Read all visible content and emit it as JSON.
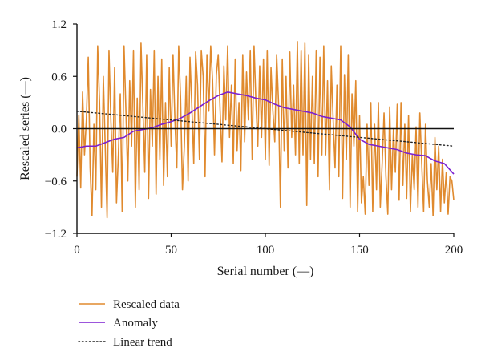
{
  "colors": {
    "rescaled_data": "#E08A2E",
    "anomaly": "#7B1FD0",
    "linear_trend": "#222222",
    "axis": "#111111"
  },
  "chart_data": {
    "type": "line",
    "xlabel": "Serial number (—)",
    "ylabel": "Rescaled series (—)",
    "xlim": [
      0,
      200
    ],
    "ylim": [
      -1.2,
      1.2
    ],
    "x_ticks": [
      0,
      50,
      100,
      150,
      200
    ],
    "y_ticks": [
      1.2,
      0.6,
      0.0,
      -0.6,
      -1.2
    ],
    "x_tick_labels": [
      "0",
      "50",
      "100",
      "150",
      "200"
    ],
    "y_tick_labels": [
      "1.2",
      "0.6",
      "0.0",
      "−0.6",
      "−1.2"
    ],
    "grid": false,
    "zero_line": true,
    "legend_position": "bottom-left, below plot",
    "series": [
      {
        "name": "Rescaled data",
        "style": "solid",
        "x": [
          0,
          1,
          2,
          3,
          4,
          5,
          6,
          7,
          8,
          9,
          10,
          11,
          12,
          13,
          14,
          15,
          16,
          17,
          18,
          19,
          20,
          21,
          22,
          23,
          24,
          25,
          26,
          27,
          28,
          29,
          30,
          31,
          32,
          33,
          34,
          35,
          36,
          37,
          38,
          39,
          40,
          41,
          42,
          43,
          44,
          45,
          46,
          47,
          48,
          49,
          50,
          51,
          52,
          53,
          54,
          55,
          56,
          57,
          58,
          59,
          60,
          61,
          62,
          63,
          64,
          65,
          66,
          67,
          68,
          69,
          70,
          71,
          72,
          73,
          74,
          75,
          76,
          77,
          78,
          79,
          80,
          81,
          82,
          83,
          84,
          85,
          86,
          87,
          88,
          89,
          90,
          91,
          92,
          93,
          94,
          95,
          96,
          97,
          98,
          99,
          100,
          101,
          102,
          103,
          104,
          105,
          106,
          107,
          108,
          109,
          110,
          111,
          112,
          113,
          114,
          115,
          116,
          117,
          118,
          119,
          120,
          121,
          122,
          123,
          124,
          125,
          126,
          127,
          128,
          129,
          130,
          131,
          132,
          133,
          134,
          135,
          136,
          137,
          138,
          139,
          140,
          141,
          142,
          143,
          144,
          145,
          146,
          147,
          148,
          149,
          150,
          151,
          152,
          153,
          154,
          155,
          156,
          157,
          158,
          159,
          160,
          161,
          162,
          163,
          164,
          165,
          166,
          167,
          168,
          169,
          170,
          171,
          172,
          173,
          174,
          175,
          176,
          177,
          178,
          179,
          180,
          181,
          182,
          183,
          184,
          185,
          186,
          187,
          188,
          189,
          190,
          191,
          192,
          193,
          194,
          195,
          196,
          197,
          198,
          199,
          200
        ],
        "y": [
          -0.55,
          0.15,
          -0.68,
          0.42,
          -0.3,
          0.1,
          0.82,
          -0.45,
          -1.0,
          0.05,
          -0.7,
          0.95,
          0.3,
          -0.9,
          0.6,
          -0.2,
          -1.02,
          0.9,
          0.1,
          -0.5,
          0.7,
          -0.85,
          -0.3,
          0.4,
          -0.95,
          0.95,
          0.2,
          -0.6,
          0.55,
          -0.2,
          0.9,
          -0.9,
          0.35,
          -0.7,
          0.98,
          0.25,
          -0.5,
          0.85,
          -0.8,
          0.45,
          -0.2,
          0.9,
          -0.75,
          0.6,
          -0.35,
          0.8,
          -0.65,
          0.3,
          -0.55,
          0.7,
          -0.2,
          0.85,
          0.1,
          -0.45,
          0.95,
          0.35,
          -0.7,
          -0.2,
          0.6,
          -0.6,
          0.82,
          0.25,
          -0.4,
          0.88,
          0.5,
          -0.35,
          0.9,
          0.6,
          -0.55,
          0.85,
          0.2,
          0.95,
          0.55,
          -0.3,
          0.62,
          0.85,
          0.2,
          -0.38,
          0.72,
          0.1,
          0.95,
          -0.1,
          0.5,
          -0.4,
          0.8,
          -0.25,
          0.3,
          -0.48,
          0.85,
          -0.15,
          0.65,
          0.1,
          0.9,
          -0.35,
          0.95,
          0.3,
          -0.2,
          0.72,
          -0.1,
          0.8,
          -0.35,
          0.9,
          -0.42,
          0.7,
          0.2,
          -0.15,
          0.85,
          0.3,
          -0.9,
          0.8,
          -0.25,
          0.6,
          -0.45,
          0.88,
          -0.1,
          0.5,
          -0.3,
          1.0,
          -0.4,
          0.9,
          -0.3,
          0.98,
          -0.88,
          0.85,
          -0.35,
          0.6,
          -0.4,
          0.9,
          -0.55,
          0.82,
          -0.3,
          0.95,
          -0.3,
          0.55,
          -0.7,
          0.72,
          0.1,
          -0.45,
          0.5,
          -0.55,
          0.95,
          -0.8,
          0.62,
          -0.35,
          0.85,
          -0.9,
          0.4,
          -0.2,
          0.55,
          -0.95,
          0.15,
          -0.85,
          -0.55,
          -0.98,
          0.05,
          -0.65,
          0.3,
          -0.95,
          0.05,
          -0.7,
          0.3,
          -0.9,
          -0.4,
          0.18,
          -0.55,
          -0.98,
          0.25,
          -0.7,
          0.0,
          -0.5,
          0.28,
          -0.82,
          0.3,
          -0.65,
          0.05,
          -0.8,
          0.15,
          -0.95,
          -0.3,
          -0.7,
          0.02,
          -0.9,
          0.18,
          -0.4,
          -0.95,
          0.05,
          -0.6,
          -0.9,
          -0.4,
          -1.0,
          -0.1,
          -0.7,
          -0.2,
          -0.95,
          -0.35,
          -0.85,
          -0.5,
          -0.98,
          -0.55,
          -0.6,
          -0.82
        ]
      },
      {
        "name": "Anomaly",
        "style": "solid",
        "x": [
          0,
          5,
          10,
          15,
          20,
          25,
          30,
          35,
          40,
          45,
          50,
          55,
          60,
          65,
          70,
          75,
          80,
          85,
          90,
          95,
          100,
          105,
          110,
          115,
          120,
          125,
          130,
          135,
          140,
          145,
          150,
          155,
          160,
          165,
          170,
          175,
          180,
          185,
          190,
          195,
          200
        ],
        "y": [
          -0.22,
          -0.2,
          -0.2,
          -0.16,
          -0.12,
          -0.1,
          -0.03,
          -0.01,
          0.01,
          0.05,
          0.08,
          0.12,
          0.18,
          0.25,
          0.32,
          0.38,
          0.42,
          0.4,
          0.38,
          0.35,
          0.33,
          0.28,
          0.24,
          0.22,
          0.2,
          0.18,
          0.14,
          0.12,
          0.1,
          0.02,
          -0.12,
          -0.18,
          -0.2,
          -0.22,
          -0.24,
          -0.28,
          -0.3,
          -0.31,
          -0.37,
          -0.4,
          -0.52
        ]
      },
      {
        "name": "Linear trend",
        "style": "dotted",
        "x": [
          0,
          200
        ],
        "y": [
          0.2,
          -0.2
        ]
      }
    ]
  }
}
